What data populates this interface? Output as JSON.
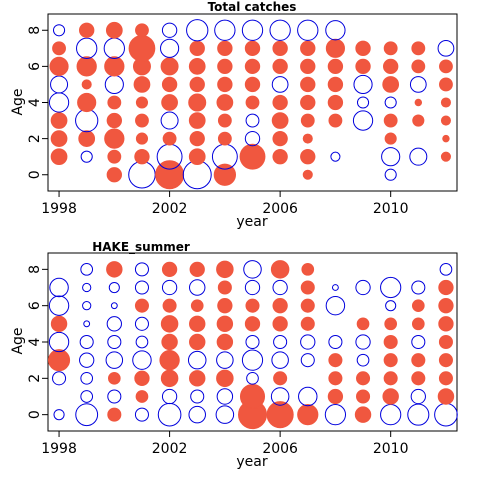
{
  "chart_data": [
    {
      "type": "bubble",
      "title": "Total catches",
      "xlabel": "year",
      "ylabel": "Age",
      "xlim": [
        1997.6,
        2012.4
      ],
      "ylim": [
        -0.9,
        8.9
      ],
      "x_ticks": [
        1998,
        2002,
        2006,
        2010
      ],
      "y_ticks": [
        0,
        2,
        4,
        6,
        8
      ],
      "grid": false,
      "positive_color": "#f0573f",
      "negative_color": "#0000dd",
      "ages": [
        0,
        1,
        2,
        3,
        4,
        5,
        6,
        7,
        8
      ],
      "years": [
        1998,
        1999,
        2000,
        2001,
        2002,
        2003,
        2004,
        2005,
        2006,
        2007,
        2008,
        2009,
        2010,
        2011,
        2012
      ],
      "residuals": [
        [
          0,
          0,
          0.5,
          -1.7,
          1.9,
          -1.9,
          1.1,
          0,
          0,
          0.2,
          0,
          0,
          -0.3,
          0,
          0
        ],
        [
          0.6,
          -0.3,
          0.4,
          0.5,
          -1.5,
          0.6,
          -1.5,
          1.5,
          0.5,
          0.5,
          -0.2,
          0,
          -0.8,
          -0.7,
          0.2
        ],
        [
          0.6,
          0.6,
          0.9,
          0.3,
          0.4,
          0.5,
          0.4,
          -0.5,
          0.5,
          0.2,
          0,
          0,
          0.3,
          0,
          0.1
        ],
        [
          0.6,
          -1.2,
          0.5,
          0.4,
          -0.7,
          0.6,
          0.4,
          -0.4,
          0.6,
          0.4,
          0.4,
          -0.9,
          0.4,
          0.3,
          0.2
        ],
        [
          -0.9,
          0.8,
          0.4,
          0.3,
          0.6,
          0.7,
          0.6,
          0.4,
          0.5,
          0.5,
          0.5,
          -0.3,
          -0.3,
          0.1,
          0.2
        ],
        [
          -0.7,
          0.2,
          -0.8,
          0.6,
          0.5,
          0.5,
          0.5,
          0.5,
          -0.6,
          0.5,
          0.5,
          -0.8,
          0.6,
          -0.6,
          0.4
        ],
        [
          0.8,
          0.9,
          0.9,
          0.7,
          0.7,
          0.6,
          0.5,
          0.5,
          0.5,
          0.5,
          0.5,
          0.5,
          0.5,
          0.4,
          0.4
        ],
        [
          0.4,
          -1.0,
          -1.0,
          1.6,
          -0.8,
          0.5,
          0.5,
          0.5,
          0.5,
          0.5,
          0.8,
          0.5,
          0.4,
          0.4,
          -0.6
        ],
        [
          -0.3,
          0.5,
          0.6,
          0.4,
          -0.5,
          -1.1,
          -1.0,
          -1.0,
          -1.0,
          -1.0,
          -0.9,
          0,
          0,
          0,
          0
        ]
      ]
    },
    {
      "type": "bubble",
      "title": "HAKE_summer",
      "xlabel": "year",
      "ylabel": "Age",
      "xlim": [
        1997.6,
        2012.4
      ],
      "ylim": [
        -0.9,
        8.9
      ],
      "x_ticks": [
        1998,
        2002,
        2006,
        2010
      ],
      "y_ticks": [
        0,
        2,
        4,
        6,
        8
      ],
      "grid": false,
      "positive_color": "#f0573f",
      "negative_color": "#0000dd",
      "ages": [
        0,
        1,
        2,
        3,
        4,
        5,
        6,
        7,
        8
      ],
      "years": [
        1998,
        1999,
        2000,
        2001,
        2002,
        2003,
        2004,
        2005,
        2006,
        2007,
        2008,
        2009,
        2010,
        2011,
        2012
      ],
      "residuals": [
        [
          -0.3,
          -1.4,
          0.5,
          -0.5,
          -1.5,
          -0.8,
          -0.9,
          2.3,
          2.0,
          1.2,
          -1.2,
          0.7,
          -1.2,
          -1.3,
          -1.5
        ],
        [
          0,
          -0.4,
          -0.5,
          0.4,
          -0.6,
          -0.5,
          -0.7,
          1.7,
          -0.9,
          -1.0,
          0.6,
          0.5,
          0.7,
          -0.6,
          0.7
        ],
        [
          -0.5,
          -0.4,
          0.4,
          0.6,
          0.8,
          0.7,
          0.8,
          -0.4,
          0.5,
          0,
          0.5,
          0.5,
          0.5,
          0.5,
          0.5
        ],
        [
          1.3,
          -0.6,
          -0.8,
          -1.0,
          1.1,
          -0.9,
          -0.8,
          -1.2,
          -0.8,
          -0.5,
          0.5,
          -0.4,
          0.5,
          0.5,
          0.5
        ],
        [
          -1.1,
          -0.5,
          -0.5,
          -0.4,
          0.7,
          0.7,
          0.7,
          -0.5,
          -0.5,
          -0.6,
          -0.5,
          -0.6,
          0.5,
          -0.5,
          0.5
        ],
        [
          0.7,
          -0.1,
          -0.6,
          -0.5,
          0.8,
          0.7,
          0.7,
          0.6,
          0.6,
          0.5,
          0,
          0.4,
          0.4,
          0.4,
          0.6
        ],
        [
          -1.1,
          -0.2,
          -0.1,
          0.5,
          0.5,
          0.4,
          0.6,
          0.5,
          0.6,
          0.5,
          -1.0,
          0,
          -0.3,
          0.4,
          0.6
        ],
        [
          -1.0,
          -0.2,
          -0.3,
          -0.5,
          -0.6,
          -0.7,
          0.5,
          -0.6,
          -0.6,
          0.5,
          -0.1,
          -0.6,
          -1.2,
          -0.5,
          0.6
        ],
        [
          0,
          -0.4,
          0.7,
          -0.5,
          0.6,
          0.6,
          0.8,
          -0.9,
          0.9,
          0.4,
          0,
          0,
          0,
          0,
          -0.4
        ]
      ]
    }
  ]
}
